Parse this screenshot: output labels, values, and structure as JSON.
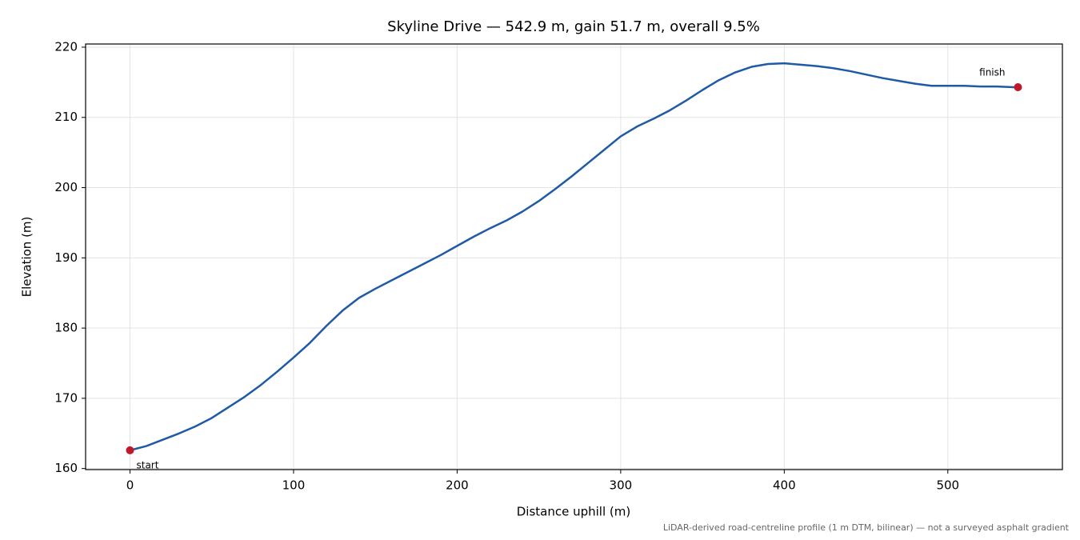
{
  "chart_data": {
    "type": "line",
    "title": "Skyline Drive — 542.9 m, gain 51.7 m, overall 9.5%",
    "x_label": "Distance uphill (m)",
    "y_label": "Elevation (m)",
    "footnote": "LiDAR-derived road-centreline profile (1 m DTM, bilinear) — not a surveyed asphalt gradient",
    "start_label": "start",
    "finish_label": "finish",
    "endpoint_color": "#c0182a",
    "x": [
      0,
      10,
      20,
      30,
      40,
      50,
      60,
      70,
      80,
      90,
      100,
      110,
      120,
      130,
      140,
      150,
      160,
      170,
      180,
      190,
      200,
      210,
      220,
      230,
      240,
      250,
      260,
      270,
      280,
      290,
      300,
      310,
      320,
      330,
      340,
      350,
      360,
      370,
      380,
      390,
      400,
      410,
      420,
      430,
      440,
      450,
      460,
      470,
      480,
      490,
      500,
      510,
      520,
      530,
      540,
      542.9
    ],
    "series": [
      {
        "name": "Elevation",
        "color": "#1f5aa6",
        "values": [
          162.6,
          163.2,
          164.1,
          165.0,
          166.0,
          167.2,
          168.7,
          170.2,
          171.9,
          173.8,
          175.8,
          177.9,
          180.3,
          182.5,
          184.3,
          185.6,
          186.8,
          188.0,
          189.2,
          190.4,
          191.7,
          193.0,
          194.2,
          195.3,
          196.6,
          198.1,
          199.8,
          201.6,
          203.5,
          205.4,
          207.3,
          208.7,
          209.8,
          211.0,
          212.4,
          213.9,
          215.3,
          216.4,
          217.2,
          217.6,
          217.7,
          217.5,
          217.3,
          217.0,
          216.6,
          216.1,
          215.6,
          215.2,
          214.8,
          214.5,
          214.5,
          214.5,
          214.4,
          214.4,
          214.3,
          214.3
        ]
      }
    ],
    "xlim": [
      -27.145,
      570.045
    ],
    "ylim": [
      159.85,
      220.45
    ],
    "xticks": [
      0,
      100,
      200,
      300,
      400,
      500
    ],
    "yticks": [
      160,
      170,
      180,
      190,
      200,
      210,
      220
    ],
    "grid": true
  }
}
